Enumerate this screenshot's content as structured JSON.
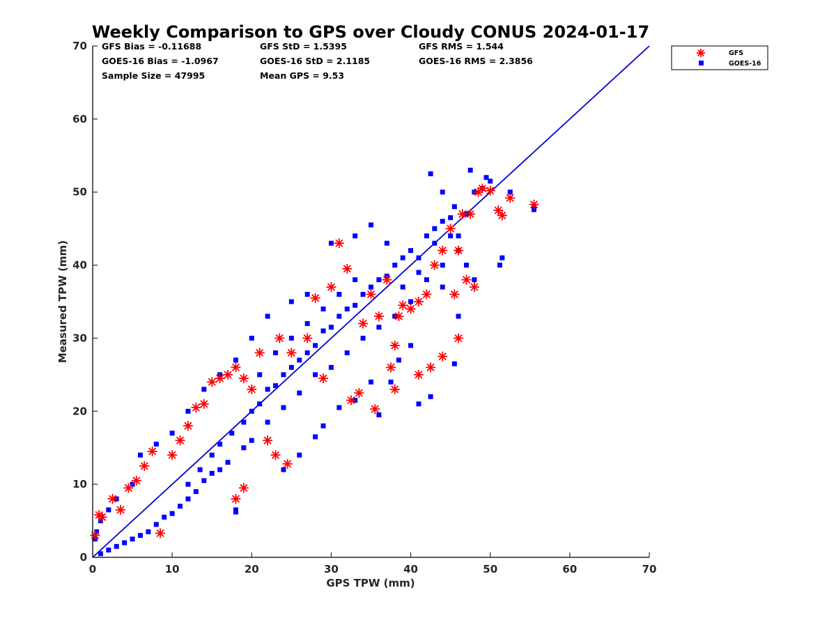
{
  "chart_data": {
    "type": "scatter",
    "title": "Weekly Comparison to GPS over Cloudy CONUS 2024-01-17",
    "xlabel": "GPS TPW (mm)",
    "ylabel": "Measured TPW (mm)",
    "xlim": [
      0,
      70
    ],
    "ylim": [
      0,
      70
    ],
    "xticks": [
      "0",
      "10",
      "20",
      "30",
      "40",
      "50",
      "60",
      "70"
    ],
    "yticks": [
      "0",
      "10",
      "20",
      "30",
      "40",
      "50",
      "60",
      "70"
    ],
    "grid": false,
    "legend_position": "outside-top-right",
    "stats": [
      "GFS Bias = -0.11688",
      "GFS StD = 1.5395",
      "GFS RMS = 1.544",
      "GOES-16 Bias = -1.0967",
      "GOES-16 StD = 2.1185",
      "GOES-16 RMS = 2.3856",
      "Sample Size = 47995",
      "Mean GPS = 9.53"
    ],
    "reference_line": {
      "color": "#0000cc",
      "x": [
        0,
        70
      ],
      "y": [
        0,
        70
      ]
    },
    "series": [
      {
        "name": "GFS",
        "marker": "asterisk",
        "color": "#ff0000",
        "points": [
          [
            0.3,
            3.0
          ],
          [
            0.8,
            5.8
          ],
          [
            1.2,
            5.5
          ],
          [
            2.5,
            8.0
          ],
          [
            3.5,
            6.5
          ],
          [
            4.5,
            9.5
          ],
          [
            5.5,
            10.5
          ],
          [
            6.5,
            12.5
          ],
          [
            7.5,
            14.5
          ],
          [
            8.5,
            3.3
          ],
          [
            10,
            14
          ],
          [
            11,
            16
          ],
          [
            12,
            18
          ],
          [
            13,
            20.5
          ],
          [
            14,
            21
          ],
          [
            15,
            24
          ],
          [
            16,
            24.5
          ],
          [
            17,
            25
          ],
          [
            18,
            8
          ],
          [
            18,
            26
          ],
          [
            19,
            9.5
          ],
          [
            19,
            24.5
          ],
          [
            20,
            23
          ],
          [
            21,
            28
          ],
          [
            22,
            16
          ],
          [
            23,
            14
          ],
          [
            23.5,
            30
          ],
          [
            24.5,
            12.8
          ],
          [
            25,
            28
          ],
          [
            27,
            30
          ],
          [
            28,
            35.5
          ],
          [
            29,
            24.5
          ],
          [
            30,
            37
          ],
          [
            31,
            43
          ],
          [
            32,
            39.5
          ],
          [
            32.5,
            21.5
          ],
          [
            33.5,
            22.5
          ],
          [
            34,
            32
          ],
          [
            35,
            36
          ],
          [
            35.5,
            20.3
          ],
          [
            36,
            33
          ],
          [
            37,
            38
          ],
          [
            37.5,
            26
          ],
          [
            38,
            23
          ],
          [
            38,
            29
          ],
          [
            38.5,
            33
          ],
          [
            39,
            34.5
          ],
          [
            40,
            34
          ],
          [
            41,
            35
          ],
          [
            41,
            25
          ],
          [
            42,
            36
          ],
          [
            42.5,
            26
          ],
          [
            43,
            40
          ],
          [
            44,
            27.5
          ],
          [
            44,
            42
          ],
          [
            45,
            45
          ],
          [
            45.5,
            36
          ],
          [
            46,
            30
          ],
          [
            46,
            42
          ],
          [
            46.5,
            47
          ],
          [
            47,
            38
          ],
          [
            47.5,
            47
          ],
          [
            48,
            37
          ],
          [
            48.5,
            50
          ],
          [
            49,
            50.5
          ],
          [
            50,
            50.2
          ],
          [
            51,
            47.5
          ],
          [
            51.5,
            46.8
          ],
          [
            52.5,
            49.2
          ],
          [
            55.5,
            48.3
          ]
        ]
      },
      {
        "name": "GOES-16",
        "marker": "square",
        "color": "#0000ff",
        "points": [
          [
            12,
            10
          ],
          [
            13.5,
            12
          ],
          [
            15,
            14
          ],
          [
            16,
            15.5
          ],
          [
            17.5,
            17
          ],
          [
            18,
            6.2
          ],
          [
            19,
            18.5
          ],
          [
            20,
            20
          ],
          [
            21,
            21
          ],
          [
            22,
            23
          ],
          [
            23,
            23.5
          ],
          [
            24,
            25
          ],
          [
            25,
            26
          ],
          [
            26,
            27
          ],
          [
            27,
            28
          ],
          [
            28,
            29
          ],
          [
            29,
            31
          ],
          [
            30,
            31.5
          ],
          [
            31,
            33
          ],
          [
            32,
            34
          ],
          [
            33,
            34.5
          ],
          [
            34,
            36
          ],
          [
            35,
            37
          ],
          [
            36,
            38
          ],
          [
            37,
            38.5
          ],
          [
            38,
            40
          ],
          [
            39,
            41
          ],
          [
            40,
            42
          ],
          [
            41,
            41
          ],
          [
            42,
            44
          ],
          [
            43,
            45
          ],
          [
            44,
            46
          ],
          [
            45,
            46.5
          ],
          [
            46,
            44
          ],
          [
            47,
            47
          ],
          [
            48,
            50
          ],
          [
            49,
            50.5
          ],
          [
            50,
            51.5
          ],
          [
            42.5,
            52.5
          ],
          [
            44,
            50
          ],
          [
            45.5,
            48
          ],
          [
            47.5,
            53
          ],
          [
            49.5,
            52
          ],
          [
            51.5,
            41
          ],
          [
            51.2,
            40
          ],
          [
            52.5,
            50
          ],
          [
            55.5,
            48
          ],
          [
            55.5,
            47.6
          ],
          [
            42.5,
            22
          ],
          [
            41,
            21
          ],
          [
            45.5,
            26.5
          ],
          [
            36,
            19.5
          ],
          [
            31,
            20.5
          ],
          [
            33,
            21.5
          ],
          [
            18,
            6.5
          ],
          [
            24,
            12
          ],
          [
            26,
            14
          ],
          [
            28,
            16.5
          ],
          [
            29,
            18
          ],
          [
            35,
            24
          ],
          [
            37.5,
            24
          ],
          [
            38.5,
            27
          ],
          [
            40,
            29
          ],
          [
            44,
            37
          ],
          [
            46,
            33
          ],
          [
            47,
            40
          ],
          [
            48,
            38
          ],
          [
            33,
            44
          ],
          [
            35,
            45.5
          ],
          [
            37,
            43
          ],
          [
            30,
            43
          ],
          [
            27,
            36
          ],
          [
            25,
            35
          ],
          [
            22,
            33
          ],
          [
            20,
            30
          ],
          [
            18,
            27
          ],
          [
            16,
            25
          ],
          [
            14,
            23
          ],
          [
            12,
            20
          ],
          [
            10,
            17
          ],
          [
            8,
            15.5
          ],
          [
            6,
            14
          ],
          [
            5,
            10
          ],
          [
            3,
            8
          ],
          [
            2,
            6.5
          ],
          [
            1,
            5
          ],
          [
            0.5,
            3.5
          ],
          [
            0.3,
            2.5
          ],
          [
            1,
            0.5
          ],
          [
            2,
            1
          ],
          [
            3,
            1.5
          ],
          [
            4,
            2
          ],
          [
            5,
            2.5
          ],
          [
            6,
            3
          ],
          [
            7,
            3.5
          ],
          [
            8,
            4.5
          ],
          [
            9,
            5.5
          ],
          [
            10,
            6
          ],
          [
            11,
            7
          ],
          [
            12,
            8
          ],
          [
            13,
            9
          ],
          [
            14,
            10.5
          ],
          [
            15,
            11.5
          ],
          [
            16,
            12
          ],
          [
            17,
            13
          ],
          [
            19,
            15
          ],
          [
            20,
            16
          ],
          [
            22,
            18.5
          ],
          [
            24,
            20.5
          ],
          [
            26,
            22.5
          ],
          [
            28,
            25
          ],
          [
            30,
            26
          ],
          [
            32,
            28
          ],
          [
            34,
            30
          ],
          [
            36,
            31.5
          ],
          [
            38,
            33
          ],
          [
            40,
            35
          ],
          [
            42,
            38
          ],
          [
            44,
            40
          ],
          [
            46,
            42
          ],
          [
            21,
            25
          ],
          [
            23,
            28
          ],
          [
            25,
            30
          ],
          [
            27,
            32
          ],
          [
            29,
            34
          ],
          [
            31,
            36
          ],
          [
            33,
            38
          ],
          [
            39,
            37
          ],
          [
            41,
            39
          ],
          [
            43,
            43
          ],
          [
            45,
            44
          ]
        ]
      }
    ]
  }
}
